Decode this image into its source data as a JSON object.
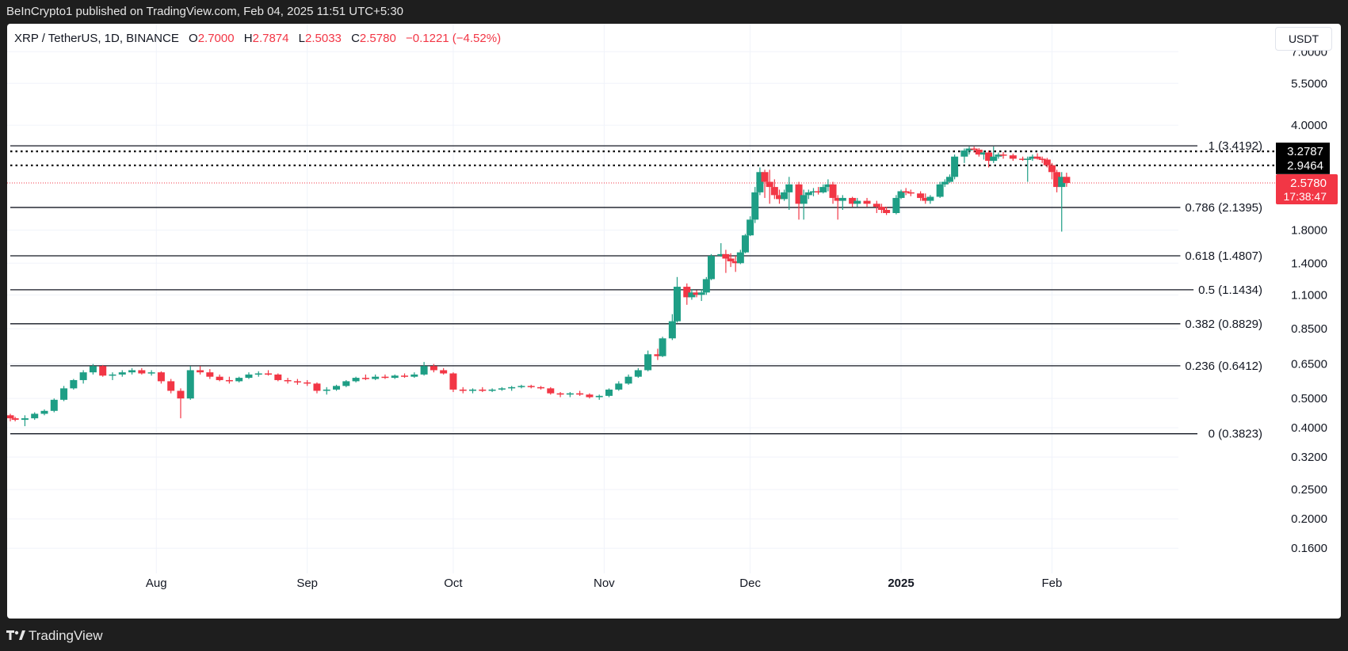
{
  "header": {
    "publish_line": "BeInCrypto1 published on TradingView.com, Feb 04, 2025 11:51 UTC+5:30"
  },
  "legend": {
    "symbol": "XRP / TetherUS, 1D, BINANCE",
    "open_label": "O",
    "open": "2.7000",
    "high_label": "H",
    "high": "2.7874",
    "low_label": "L",
    "low": "2.5033",
    "close_label": "C",
    "close": "2.5780",
    "change": "−0.1221 (−4.52%)"
  },
  "currency_button": "USDT",
  "footer": {
    "brand": "TradingView"
  },
  "colors": {
    "up": "#26a69a",
    "up_fill": "#1e9e85",
    "down": "#f23645",
    "grid": "#f0f3fa",
    "text": "#131722",
    "price_label_bg": "#f23645",
    "level_label_bg": "#000000"
  },
  "chart_data": {
    "type": "candlestick",
    "scale": "log",
    "ylim": [
      0.142,
      8.2
    ],
    "x_axis": {
      "ticks": [
        "Aug",
        "Sep",
        "Oct",
        "Nov",
        "Dec",
        "2025",
        "Feb"
      ],
      "tick_dates": [
        "2024-08-01",
        "2024-09-01",
        "2024-10-01",
        "2024-11-01",
        "2024-12-01",
        "2025-01-01",
        "2025-02-01"
      ],
      "range": [
        "2024-07-02",
        "2025-02-26"
      ]
    },
    "y_axis": {
      "ticks": [
        7.0,
        5.5,
        4.0,
        1.8,
        1.4,
        1.1,
        0.85,
        0.65,
        0.5,
        0.4,
        0.32,
        0.25,
        0.2,
        0.16
      ],
      "tick_labels": [
        "7.0000",
        "5.5000",
        "4.0000",
        "1.8000",
        "1.4000",
        "1.1000",
        "0.8500",
        "0.6500",
        "0.5000",
        "0.4000",
        "0.3200",
        "0.2500",
        "0.2000",
        "0.1600"
      ]
    },
    "fib_levels": [
      {
        "label": "1 (3.4192)",
        "value": 3.4192
      },
      {
        "label": "0.786 (2.1395)",
        "value": 2.1395
      },
      {
        "label": "0.618 (1.4807)",
        "value": 1.4807
      },
      {
        "label": "0.5 (1.1434)",
        "value": 1.1434
      },
      {
        "label": "0.382 (0.8829)",
        "value": 0.8829
      },
      {
        "label": "0.236 (0.6412)",
        "value": 0.6412
      },
      {
        "label": "0 (0.3823)",
        "value": 0.3823
      }
    ],
    "horizontal_levels": [
      {
        "label": "3.2787",
        "value": 3.2787
      },
      {
        "label": "2.9464",
        "value": 2.9464
      }
    ],
    "last_price": {
      "label": "2.5780",
      "value": 2.578,
      "countdown": "17:38:47"
    },
    "candles": [
      [
        "2024-07-02",
        0.44,
        0.445,
        0.42,
        0.43
      ],
      [
        "2024-07-03",
        0.43,
        0.435,
        0.42,
        0.425
      ],
      [
        "2024-07-05",
        0.425,
        0.44,
        0.405,
        0.43
      ],
      [
        "2024-07-07",
        0.43,
        0.45,
        0.425,
        0.445
      ],
      [
        "2024-07-09",
        0.445,
        0.46,
        0.44,
        0.455
      ],
      [
        "2024-07-11",
        0.455,
        0.5,
        0.45,
        0.495
      ],
      [
        "2024-07-13",
        0.495,
        0.55,
        0.49,
        0.54
      ],
      [
        "2024-07-15",
        0.54,
        0.58,
        0.535,
        0.575
      ],
      [
        "2024-07-17",
        0.575,
        0.62,
        0.56,
        0.61
      ],
      [
        "2024-07-19",
        0.61,
        0.65,
        0.6,
        0.64
      ],
      [
        "2024-07-21",
        0.64,
        0.645,
        0.59,
        0.595
      ],
      [
        "2024-07-23",
        0.595,
        0.61,
        0.575,
        0.6
      ],
      [
        "2024-07-25",
        0.6,
        0.62,
        0.59,
        0.61
      ],
      [
        "2024-07-27",
        0.61,
        0.63,
        0.6,
        0.62
      ],
      [
        "2024-07-29",
        0.62,
        0.63,
        0.6,
        0.605
      ],
      [
        "2024-07-31",
        0.605,
        0.62,
        0.595,
        0.61
      ],
      [
        "2024-08-02",
        0.61,
        0.615,
        0.56,
        0.57
      ],
      [
        "2024-08-04",
        0.57,
        0.58,
        0.52,
        0.53
      ],
      [
        "2024-08-06",
        0.53,
        0.54,
        0.43,
        0.5
      ],
      [
        "2024-08-08",
        0.5,
        0.64,
        0.495,
        0.62
      ],
      [
        "2024-08-10",
        0.62,
        0.64,
        0.6,
        0.61
      ],
      [
        "2024-08-12",
        0.61,
        0.625,
        0.58,
        0.59
      ],
      [
        "2024-08-14",
        0.59,
        0.6,
        0.57,
        0.575
      ],
      [
        "2024-08-16",
        0.575,
        0.59,
        0.56,
        0.57
      ],
      [
        "2024-08-18",
        0.57,
        0.59,
        0.565,
        0.585
      ],
      [
        "2024-08-20",
        0.585,
        0.61,
        0.58,
        0.6
      ],
      [
        "2024-08-22",
        0.6,
        0.615,
        0.59,
        0.605
      ],
      [
        "2024-08-24",
        0.605,
        0.62,
        0.595,
        0.6
      ],
      [
        "2024-08-26",
        0.6,
        0.605,
        0.57,
        0.575
      ],
      [
        "2024-08-28",
        0.575,
        0.585,
        0.56,
        0.57
      ],
      [
        "2024-08-30",
        0.57,
        0.58,
        0.555,
        0.565
      ],
      [
        "2024-09-01",
        0.565,
        0.575,
        0.55,
        0.56
      ],
      [
        "2024-09-03",
        0.56,
        0.565,
        0.52,
        0.53
      ],
      [
        "2024-09-05",
        0.53,
        0.545,
        0.515,
        0.535
      ],
      [
        "2024-09-07",
        0.535,
        0.555,
        0.53,
        0.55
      ],
      [
        "2024-09-09",
        0.55,
        0.575,
        0.545,
        0.57
      ],
      [
        "2024-09-11",
        0.57,
        0.59,
        0.565,
        0.585
      ],
      [
        "2024-09-13",
        0.585,
        0.6,
        0.575,
        0.58
      ],
      [
        "2024-09-15",
        0.58,
        0.6,
        0.575,
        0.59
      ],
      [
        "2024-09-17",
        0.59,
        0.6,
        0.58,
        0.585
      ],
      [
        "2024-09-19",
        0.585,
        0.6,
        0.58,
        0.595
      ],
      [
        "2024-09-21",
        0.595,
        0.605,
        0.585,
        0.59
      ],
      [
        "2024-09-23",
        0.59,
        0.61,
        0.585,
        0.6
      ],
      [
        "2024-09-25",
        0.6,
        0.66,
        0.595,
        0.64
      ],
      [
        "2024-09-27",
        0.64,
        0.65,
        0.61,
        0.62
      ],
      [
        "2024-09-29",
        0.62,
        0.63,
        0.6,
        0.605
      ],
      [
        "2024-10-01",
        0.605,
        0.61,
        0.525,
        0.535
      ],
      [
        "2024-10-03",
        0.535,
        0.545,
        0.52,
        0.53
      ],
      [
        "2024-10-05",
        0.53,
        0.54,
        0.52,
        0.535
      ],
      [
        "2024-10-07",
        0.535,
        0.545,
        0.525,
        0.53
      ],
      [
        "2024-10-09",
        0.53,
        0.54,
        0.525,
        0.535
      ],
      [
        "2024-10-11",
        0.535,
        0.545,
        0.53,
        0.54
      ],
      [
        "2024-10-13",
        0.54,
        0.55,
        0.53,
        0.545
      ],
      [
        "2024-10-15",
        0.545,
        0.555,
        0.54,
        0.55
      ],
      [
        "2024-10-17",
        0.55,
        0.555,
        0.54,
        0.545
      ],
      [
        "2024-10-19",
        0.545,
        0.55,
        0.535,
        0.54
      ],
      [
        "2024-10-21",
        0.54,
        0.545,
        0.515,
        0.52
      ],
      [
        "2024-10-23",
        0.52,
        0.525,
        0.505,
        0.515
      ],
      [
        "2024-10-25",
        0.515,
        0.525,
        0.505,
        0.52
      ],
      [
        "2024-10-27",
        0.52,
        0.53,
        0.51,
        0.515
      ],
      [
        "2024-10-29",
        0.515,
        0.52,
        0.5,
        0.505
      ],
      [
        "2024-10-31",
        0.505,
        0.515,
        0.495,
        0.51
      ],
      [
        "2024-11-02",
        0.51,
        0.54,
        0.505,
        0.535
      ],
      [
        "2024-11-04",
        0.535,
        0.57,
        0.53,
        0.56
      ],
      [
        "2024-11-06",
        0.56,
        0.6,
        0.555,
        0.59
      ],
      [
        "2024-11-08",
        0.59,
        0.63,
        0.585,
        0.62
      ],
      [
        "2024-11-10",
        0.62,
        0.72,
        0.615,
        0.7
      ],
      [
        "2024-11-12",
        0.7,
        0.73,
        0.67,
        0.69
      ],
      [
        "2024-11-13",
        0.69,
        0.8,
        0.685,
        0.79
      ],
      [
        "2024-11-15",
        0.79,
        0.95,
        0.78,
        0.9
      ],
      [
        "2024-11-16",
        0.9,
        1.26,
        0.89,
        1.17
      ],
      [
        "2024-11-18",
        1.17,
        1.2,
        1.02,
        1.08
      ],
      [
        "2024-11-19",
        1.08,
        1.15,
        1.06,
        1.12
      ],
      [
        "2024-11-20",
        1.12,
        1.14,
        1.08,
        1.1
      ],
      [
        "2024-11-21",
        1.1,
        1.15,
        1.05,
        1.12
      ],
      [
        "2024-11-22",
        1.12,
        1.26,
        1.1,
        1.24
      ],
      [
        "2024-11-23",
        1.24,
        1.5,
        1.23,
        1.48
      ],
      [
        "2024-11-25",
        1.48,
        1.63,
        1.47,
        1.5
      ],
      [
        "2024-11-26",
        1.5,
        1.55,
        1.3,
        1.45
      ],
      [
        "2024-11-27",
        1.45,
        1.51,
        1.36,
        1.42
      ],
      [
        "2024-11-28",
        1.42,
        1.48,
        1.31,
        1.4
      ],
      [
        "2024-11-29",
        1.4,
        1.55,
        1.39,
        1.52
      ],
      [
        "2024-11-30",
        1.52,
        1.75,
        1.51,
        1.73
      ],
      [
        "2024-12-01",
        1.73,
        2.0,
        1.72,
        1.95
      ],
      [
        "2024-12-02",
        1.95,
        2.5,
        1.9,
        2.4
      ],
      [
        "2024-12-03",
        2.4,
        2.9,
        2.35,
        2.8
      ],
      [
        "2024-12-04",
        2.8,
        2.85,
        2.3,
        2.6
      ],
      [
        "2024-12-05",
        2.6,
        2.85,
        2.2,
        2.5
      ],
      [
        "2024-12-06",
        2.5,
        2.65,
        2.28,
        2.35
      ],
      [
        "2024-12-07",
        2.35,
        2.45,
        2.2,
        2.28
      ],
      [
        "2024-12-08",
        2.28,
        2.45,
        2.25,
        2.4
      ],
      [
        "2024-12-09",
        2.4,
        2.7,
        2.1,
        2.55
      ],
      [
        "2024-12-11",
        2.55,
        2.6,
        1.95,
        2.2
      ],
      [
        "2024-12-12",
        2.2,
        2.45,
        1.95,
        2.35
      ],
      [
        "2024-12-13",
        2.35,
        2.45,
        2.28,
        2.4
      ],
      [
        "2024-12-14",
        2.4,
        2.48,
        2.33,
        2.42
      ],
      [
        "2024-12-15",
        2.42,
        2.5,
        2.36,
        2.4
      ],
      [
        "2024-12-16",
        2.4,
        2.55,
        2.38,
        2.5
      ],
      [
        "2024-12-17",
        2.5,
        2.65,
        2.42,
        2.55
      ],
      [
        "2024-12-18",
        2.55,
        2.6,
        2.2,
        2.3
      ],
      [
        "2024-12-19",
        2.3,
        2.35,
        1.95,
        2.25
      ],
      [
        "2024-12-20",
        2.25,
        2.35,
        2.1,
        2.3
      ],
      [
        "2024-12-22",
        2.3,
        2.32,
        2.15,
        2.2
      ],
      [
        "2024-12-23",
        2.2,
        2.3,
        2.15,
        2.25
      ],
      [
        "2024-12-25",
        2.25,
        2.3,
        2.15,
        2.2
      ],
      [
        "2024-12-27",
        2.2,
        2.25,
        2.05,
        2.15
      ],
      [
        "2024-12-28",
        2.15,
        2.2,
        2.05,
        2.1
      ],
      [
        "2024-12-29",
        2.1,
        2.15,
        2.02,
        2.05
      ],
      [
        "2024-12-31",
        2.05,
        2.35,
        2.03,
        2.3
      ],
      [
        "2025-01-01",
        2.3,
        2.45,
        2.28,
        2.42
      ],
      [
        "2025-01-02",
        2.42,
        2.48,
        2.35,
        2.4
      ],
      [
        "2025-01-03",
        2.4,
        2.45,
        2.33,
        2.38
      ],
      [
        "2025-01-05",
        2.38,
        2.42,
        2.25,
        2.3
      ],
      [
        "2025-01-06",
        2.3,
        2.38,
        2.2,
        2.25
      ],
      [
        "2025-01-07",
        2.25,
        2.35,
        2.2,
        2.32
      ],
      [
        "2025-01-09",
        2.32,
        2.6,
        2.3,
        2.55
      ],
      [
        "2025-01-10",
        2.55,
        2.65,
        2.5,
        2.6
      ],
      [
        "2025-01-11",
        2.6,
        2.75,
        2.58,
        2.7
      ],
      [
        "2025-01-12",
        2.7,
        3.2,
        2.65,
        3.15
      ],
      [
        "2025-01-14",
        3.15,
        3.35,
        3.0,
        3.3
      ],
      [
        "2025-01-15",
        3.3,
        3.4,
        3.2,
        3.35
      ],
      [
        "2025-01-16",
        3.35,
        3.4,
        3.25,
        3.32
      ],
      [
        "2025-01-17",
        3.32,
        3.36,
        3.15,
        3.2
      ],
      [
        "2025-01-18",
        3.2,
        3.3,
        3.08,
        3.25
      ],
      [
        "2025-01-19",
        3.25,
        3.3,
        2.9,
        3.05
      ],
      [
        "2025-01-20",
        3.05,
        3.4,
        3.0,
        3.15
      ],
      [
        "2025-01-21",
        3.15,
        3.25,
        3.1,
        3.2
      ],
      [
        "2025-01-22",
        3.2,
        3.26,
        3.1,
        3.18
      ],
      [
        "2025-01-24",
        3.18,
        3.22,
        3.05,
        3.1
      ],
      [
        "2025-01-26",
        3.1,
        3.15,
        3.05,
        3.08
      ],
      [
        "2025-01-27",
        3.08,
        3.15,
        2.6,
        3.1
      ],
      [
        "2025-01-28",
        3.1,
        3.2,
        3.05,
        3.15
      ],
      [
        "2025-01-29",
        3.15,
        3.23,
        3.08,
        3.1
      ],
      [
        "2025-01-30",
        3.1,
        3.15,
        3.0,
        3.08
      ],
      [
        "2025-01-31",
        3.08,
        3.12,
        2.9,
        2.95
      ],
      [
        "2025-02-01",
        2.95,
        3.0,
        2.65,
        2.8
      ],
      [
        "2025-02-02",
        2.8,
        2.85,
        2.4,
        2.5
      ],
      [
        "2025-02-03",
        2.5,
        2.8,
        1.78,
        2.7
      ],
      [
        "2025-02-04",
        2.7,
        2.787,
        2.503,
        2.578
      ]
    ]
  }
}
